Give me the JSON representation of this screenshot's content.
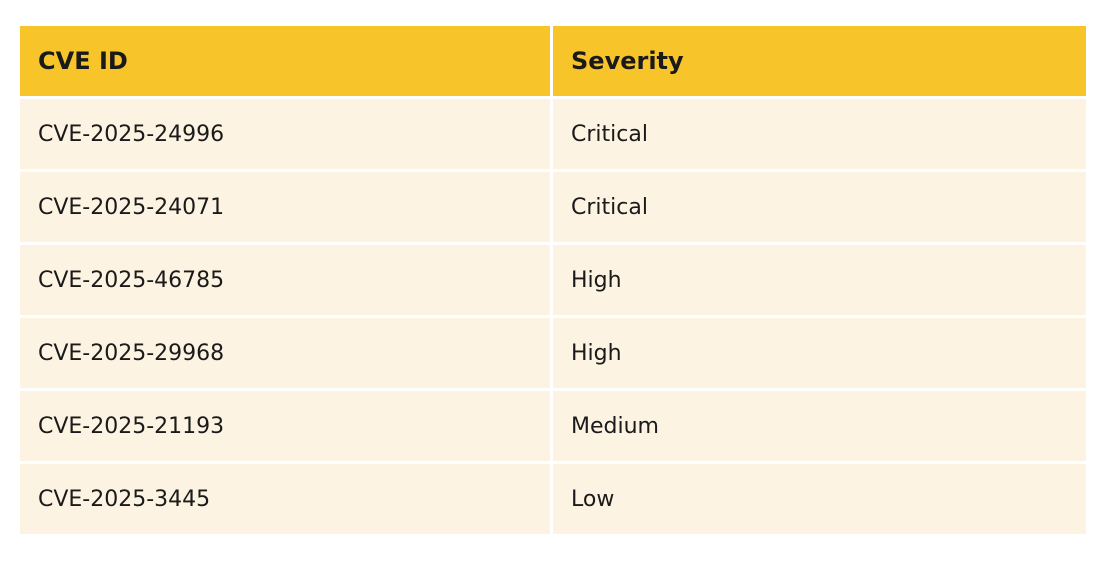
{
  "table": {
    "headers": [
      "CVE ID",
      "Severity"
    ],
    "rows": [
      [
        "CVE-2025-24996",
        "Critical"
      ],
      [
        "CVE-2025-24071",
        "Critical"
      ],
      [
        "CVE-2025-46785",
        "High"
      ],
      [
        "CVE-2025-29968",
        "High"
      ],
      [
        "CVE-2025-21193",
        "Medium"
      ],
      [
        "CVE-2025-3445",
        "Low"
      ]
    ]
  },
  "colors": {
    "header_bg": "#f7c42a",
    "row_bg": "#fdf3e2",
    "text": "#1a1a1a"
  }
}
